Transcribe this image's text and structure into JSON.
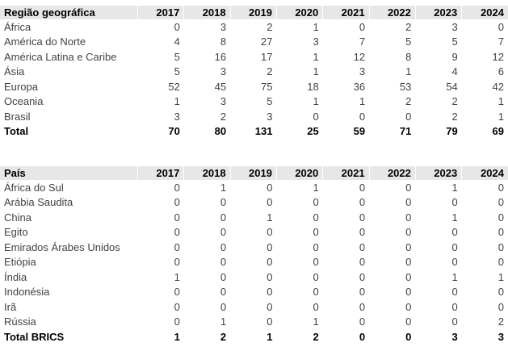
{
  "tables": [
    {
      "name": "regions",
      "header_label": "Região geográfica",
      "years": [
        "2017",
        "2018",
        "2019",
        "2020",
        "2021",
        "2022",
        "2023",
        "2024"
      ],
      "rows": [
        {
          "label": "África",
          "values": [
            0,
            3,
            2,
            1,
            0,
            2,
            3,
            0
          ],
          "bold": false
        },
        {
          "label": "América do Norte",
          "values": [
            4,
            8,
            27,
            3,
            7,
            5,
            5,
            7
          ],
          "bold": false
        },
        {
          "label": "América Latina e Caribe",
          "values": [
            5,
            16,
            17,
            1,
            12,
            8,
            9,
            12
          ],
          "bold": false
        },
        {
          "label": "Ásia",
          "values": [
            5,
            3,
            2,
            1,
            3,
            1,
            4,
            6
          ],
          "bold": false
        },
        {
          "label": "Europa",
          "values": [
            52,
            45,
            75,
            18,
            36,
            53,
            54,
            42
          ],
          "bold": false
        },
        {
          "label": "Oceania",
          "values": [
            1,
            3,
            5,
            1,
            1,
            2,
            2,
            1
          ],
          "bold": false
        },
        {
          "label": "Brasil",
          "values": [
            3,
            2,
            3,
            0,
            0,
            0,
            2,
            1
          ],
          "bold": false
        },
        {
          "label": "Total",
          "values": [
            70,
            80,
            131,
            25,
            59,
            71,
            79,
            69
          ],
          "bold": true
        }
      ]
    },
    {
      "name": "countries",
      "header_label": "País",
      "years": [
        "2017",
        "2018",
        "2019",
        "2020",
        "2021",
        "2022",
        "2023",
        "2024"
      ],
      "rows": [
        {
          "label": "África do Sul",
          "values": [
            0,
            1,
            0,
            1,
            0,
            0,
            1,
            0
          ],
          "bold": false
        },
        {
          "label": "Arábia Saudita",
          "values": [
            0,
            0,
            0,
            0,
            0,
            0,
            0,
            0
          ],
          "bold": false
        },
        {
          "label": "China",
          "values": [
            0,
            0,
            1,
            0,
            0,
            0,
            1,
            0
          ],
          "bold": false
        },
        {
          "label": "Egito",
          "values": [
            0,
            0,
            0,
            0,
            0,
            0,
            0,
            0
          ],
          "bold": false
        },
        {
          "label": "Emirados Árabes Unidos",
          "values": [
            0,
            0,
            0,
            0,
            0,
            0,
            0,
            0
          ],
          "bold": false
        },
        {
          "label": "Etiópia",
          "values": [
            0,
            0,
            0,
            0,
            0,
            0,
            0,
            0
          ],
          "bold": false
        },
        {
          "label": "Índia",
          "values": [
            1,
            0,
            0,
            0,
            0,
            0,
            1,
            1
          ],
          "bold": false
        },
        {
          "label": "Indonésia",
          "values": [
            0,
            0,
            0,
            0,
            0,
            0,
            0,
            0
          ],
          "bold": false
        },
        {
          "label": "Irã",
          "values": [
            0,
            0,
            0,
            0,
            0,
            0,
            0,
            0
          ],
          "bold": false
        },
        {
          "label": "Rússia",
          "values": [
            0,
            1,
            0,
            1,
            0,
            0,
            0,
            2
          ],
          "bold": false
        },
        {
          "label": "Total BRICS",
          "values": [
            1,
            2,
            1,
            2,
            0,
            0,
            3,
            3
          ],
          "bold": true
        }
      ]
    }
  ]
}
